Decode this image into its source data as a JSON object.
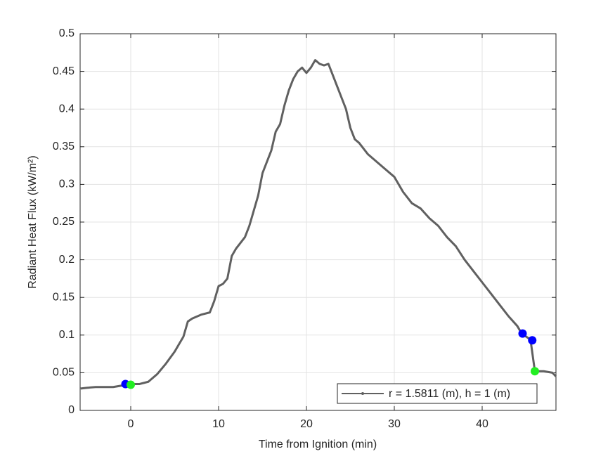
{
  "chart_data": {
    "type": "line",
    "xlabel": "Time from Ignition (min)",
    "ylabel": "Radiant Heat Flux (kW/m²)",
    "xlim": [
      -5.76,
      48.4
    ],
    "ylim": [
      0,
      0.5
    ],
    "xticks": [
      0,
      10,
      20,
      30,
      40
    ],
    "yticks": [
      0,
      0.05,
      0.1,
      0.15,
      0.2,
      0.25,
      0.3,
      0.35,
      0.4,
      0.45,
      0.5
    ],
    "grid": true,
    "legend": "southeast",
    "series": [
      {
        "name": "r = 1.5811 (m), h = 1 (m)",
        "color": "#606060",
        "style": "line",
        "x": [
          -5.7,
          -5,
          -4,
          -3,
          -2,
          -1,
          -0.5,
          0,
          1,
          2,
          3,
          4,
          5,
          6,
          6.5,
          7,
          8,
          9,
          9.5,
          10,
          10.5,
          11,
          11.5,
          12,
          13,
          13.5,
          14,
          14.5,
          15,
          15.5,
          16,
          16.5,
          17,
          17.5,
          18,
          18.5,
          19,
          19.5,
          20,
          20.5,
          21,
          21.5,
          22,
          22.5,
          23,
          23.5,
          24,
          24.5,
          25,
          25.5,
          26,
          27,
          28,
          29,
          30,
          31,
          32,
          33,
          34,
          35,
          36,
          37,
          38,
          39,
          40,
          41,
          42,
          43,
          44,
          44.5,
          45.5,
          46,
          47,
          48,
          48.4
        ],
        "values": [
          0.029,
          0.03,
          0.031,
          0.031,
          0.031,
          0.033,
          0.035,
          0.035,
          0.035,
          0.038,
          0.048,
          0.062,
          0.078,
          0.098,
          0.118,
          0.122,
          0.127,
          0.13,
          0.145,
          0.165,
          0.168,
          0.175,
          0.205,
          0.215,
          0.23,
          0.245,
          0.265,
          0.285,
          0.315,
          0.33,
          0.345,
          0.37,
          0.38,
          0.405,
          0.425,
          0.44,
          0.45,
          0.455,
          0.448,
          0.455,
          0.465,
          0.46,
          0.458,
          0.46,
          0.445,
          0.43,
          0.415,
          0.4,
          0.375,
          0.36,
          0.355,
          0.34,
          0.33,
          0.32,
          0.31,
          0.29,
          0.275,
          0.268,
          0.255,
          0.245,
          0.23,
          0.218,
          0.2,
          0.185,
          0.17,
          0.155,
          0.14,
          0.125,
          0.112,
          0.102,
          0.094,
          0.052,
          0.052,
          0.05,
          0.045
        ]
      },
      {
        "color": "#0000ff",
        "style": "markers",
        "x": [
          -0.6,
          44.6,
          45.7
        ],
        "values": [
          0.035,
          0.102,
          0.093
        ]
      },
      {
        "color": "#22ee22",
        "style": "markers",
        "x": [
          0,
          46
        ],
        "values": [
          0.034,
          0.052
        ]
      }
    ]
  }
}
